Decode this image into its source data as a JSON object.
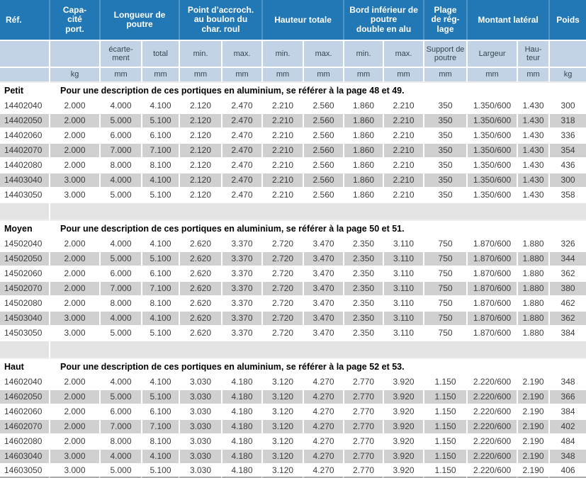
{
  "colors": {
    "header_blue": "#2278b5",
    "header_separator": "#4e94c4",
    "subheader_bg": "#c2d3e5",
    "subheader_text": "#37444e",
    "row_alt_gray": "#d0d0d0",
    "gap_gray": "#e4e4e4",
    "data_text": "#3c3c3c",
    "bottom_line": "#a8a8a8"
  },
  "header": {
    "ref_label": "Réf.",
    "groups": [
      {
        "label": "Capa-\ncité\nport.",
        "span": 1
      },
      {
        "label": "Longueur de\npoutre",
        "span": 2
      },
      {
        "label": "Point d’accroch.\nau boulon du\nchar. roul",
        "span": 2
      },
      {
        "label": "Hauteur totale",
        "span": 2
      },
      {
        "label": "Bord inférieur de\npoutre\ndouble en alu",
        "span": 2
      },
      {
        "label": "Plage\nde rég-\nlage",
        "span": 1
      },
      {
        "label": "Montant latéral",
        "span": 2
      },
      {
        "label": "Poids",
        "span": 1
      }
    ],
    "subheaders": [
      "",
      "",
      "écarte-\nment",
      "total",
      "min.",
      "max.",
      "min.",
      "max.",
      "min.",
      "max.",
      "Support de\npoutre",
      "Largeur",
      "Hau-\nteur",
      ""
    ],
    "units": [
      "",
      "kg",
      "mm",
      "mm",
      "mm",
      "mm",
      "mm",
      "mm",
      "mm",
      "mm",
      "mm",
      "mm",
      "mm",
      "kg"
    ]
  },
  "sections": [
    {
      "name": "Petit",
      "description": "Pour une description de ces portiques en aluminium, se référer à la page 48 et 49.",
      "rows": [
        [
          "14402040",
          "2.000",
          "4.000",
          "4.100",
          "2.120",
          "2.470",
          "2.210",
          "2.560",
          "1.860",
          "2.210",
          "350",
          "1.350/600",
          "1.430",
          "300"
        ],
        [
          "14402050",
          "2.000",
          "5.000",
          "5.100",
          "2.120",
          "2.470",
          "2.210",
          "2.560",
          "1.860",
          "2.210",
          "350",
          "1.350/600",
          "1.430",
          "318"
        ],
        [
          "14402060",
          "2.000",
          "6.000",
          "6.100",
          "2.120",
          "2.470",
          "2.210",
          "2.560",
          "1.860",
          "2.210",
          "350",
          "1.350/600",
          "1.430",
          "336"
        ],
        [
          "14402070",
          "2.000",
          "7.000",
          "7.100",
          "2.120",
          "2.470",
          "2.210",
          "2.560",
          "1.860",
          "2.210",
          "350",
          "1.350/600",
          "1.430",
          "354"
        ],
        [
          "14402080",
          "2.000",
          "8.000",
          "8.100",
          "2.120",
          "2.470",
          "2.210",
          "2.560",
          "1.860",
          "2.210",
          "350",
          "1.350/600",
          "1.430",
          "436"
        ],
        [
          "14403040",
          "3.000",
          "4.000",
          "4.100",
          "2.120",
          "2.470",
          "2.210",
          "2.560",
          "1.860",
          "2.210",
          "350",
          "1.350/600",
          "1.430",
          "300"
        ],
        [
          "14403050",
          "3.000",
          "5.000",
          "5.100",
          "2.120",
          "2.470",
          "2.210",
          "2.560",
          "1.860",
          "2.210",
          "350",
          "1.350/600",
          "1.430",
          "358"
        ]
      ]
    },
    {
      "name": "Moyen",
      "description": "Pour une description de ces portiques en aluminium, se référer à la page 50 et 51.",
      "rows": [
        [
          "14502040",
          "2.000",
          "4.000",
          "4.100",
          "2.620",
          "3.370",
          "2.720",
          "3.470",
          "2.350",
          "3.110",
          "750",
          "1.870/600",
          "1.880",
          "326"
        ],
        [
          "14502050",
          "2.000",
          "5.000",
          "5.100",
          "2.620",
          "3.370",
          "2.720",
          "3.470",
          "2.350",
          "3.110",
          "750",
          "1.870/600",
          "1.880",
          "344"
        ],
        [
          "14502060",
          "2.000",
          "6.000",
          "6.100",
          "2.620",
          "3.370",
          "2.720",
          "3.470",
          "2.350",
          "3.110",
          "750",
          "1.870/600",
          "1.880",
          "362"
        ],
        [
          "14502070",
          "2.000",
          "7.000",
          "7.100",
          "2.620",
          "3.370",
          "2.720",
          "3.470",
          "2.350",
          "3.110",
          "750",
          "1.870/600",
          "1.880",
          "380"
        ],
        [
          "14502080",
          "2.000",
          "8.000",
          "8.100",
          "2.620",
          "3.370",
          "2.720",
          "3.470",
          "2.350",
          "3.110",
          "750",
          "1.870/600",
          "1.880",
          "462"
        ],
        [
          "14503040",
          "3.000",
          "4.000",
          "4.100",
          "2.620",
          "3.370",
          "2.720",
          "3.470",
          "2.350",
          "3.110",
          "750",
          "1.870/600",
          "1.880",
          "362"
        ],
        [
          "14503050",
          "3.000",
          "5.000",
          "5.100",
          "2.620",
          "3.370",
          "2.720",
          "3.470",
          "2.350",
          "3.110",
          "750",
          "1.870/600",
          "1.880",
          "384"
        ]
      ]
    },
    {
      "name": "Haut",
      "description": "Pour une description de ces portiques en aluminium, se référer à la page 52 et 53.",
      "rows": [
        [
          "14602040",
          "2.000",
          "4.000",
          "4.100",
          "3.030",
          "4.180",
          "3.120",
          "4.270",
          "2.770",
          "3.920",
          "1.150",
          "2.220/600",
          "2.190",
          "348"
        ],
        [
          "14602050",
          "2.000",
          "5.000",
          "5.100",
          "3.030",
          "4.180",
          "3.120",
          "4.270",
          "2.770",
          "3.920",
          "1.150",
          "2.220/600",
          "2.190",
          "366"
        ],
        [
          "14602060",
          "2.000",
          "6.000",
          "6.100",
          "3.030",
          "4.180",
          "3.120",
          "4.270",
          "2.770",
          "3.920",
          "1.150",
          "2.220/600",
          "2.190",
          "384"
        ],
        [
          "14602070",
          "2.000",
          "7.000",
          "7.100",
          "3.030",
          "4.180",
          "3.120",
          "4.270",
          "2.770",
          "3.920",
          "1.150",
          "2.220/600",
          "2.190",
          "402"
        ],
        [
          "14602080",
          "2.000",
          "8.000",
          "8.100",
          "3.030",
          "4.180",
          "3.120",
          "4.270",
          "2.770",
          "3.920",
          "1.150",
          "2.220/600",
          "2.190",
          "484"
        ],
        [
          "14603040",
          "3.000",
          "4.000",
          "4.100",
          "3.030",
          "4.180",
          "3.120",
          "4.270",
          "2.770",
          "3.920",
          "1.150",
          "2.220/600",
          "2.190",
          "348"
        ],
        [
          "14603050",
          "3.000",
          "5.000",
          "5.100",
          "3.030",
          "4.180",
          "3.120",
          "4.270",
          "2.770",
          "3.920",
          "1.150",
          "2.220/600",
          "2.190",
          "406"
        ]
      ]
    }
  ]
}
